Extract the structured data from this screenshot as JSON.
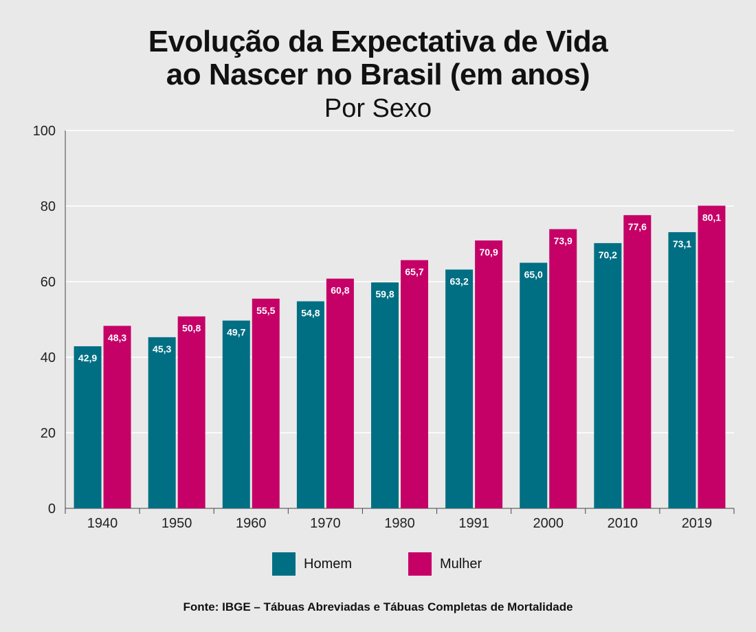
{
  "chart_data": {
    "type": "bar",
    "title_line1": "Evolução da Expectativa de Vida",
    "title_line2": "ao Nascer no Brasil (em anos)",
    "subtitle": "Por Sexo",
    "categories": [
      "1940",
      "1950",
      "1960",
      "1970",
      "1980",
      "1991",
      "2000",
      "2010",
      "2019"
    ],
    "series": [
      {
        "name": "Homem",
        "color": "#006f83",
        "values": [
          42.9,
          45.3,
          49.7,
          54.8,
          59.8,
          63.2,
          65.0,
          70.2,
          73.1
        ],
        "labels": [
          "42,9",
          "45,3",
          "49,7",
          "54,8",
          "59,8",
          "63,2",
          "65,0",
          "70,2",
          "73,1"
        ]
      },
      {
        "name": "Mulher",
        "color": "#c50067",
        "values": [
          48.3,
          50.8,
          55.5,
          60.8,
          65.7,
          70.9,
          73.9,
          77.6,
          80.1
        ],
        "labels": [
          "48,3",
          "50,8",
          "55,5",
          "60,8",
          "65,7",
          "70,9",
          "73,9",
          "77,6",
          "80,1"
        ]
      }
    ],
    "ylim": [
      0,
      100
    ],
    "yticks": [
      0,
      20,
      40,
      60,
      80,
      100
    ],
    "grid": true,
    "legend_position": "bottom",
    "source": "Fonte: IBGE – Tábuas Abreviadas e Tábuas Completas de Mortalidade"
  }
}
